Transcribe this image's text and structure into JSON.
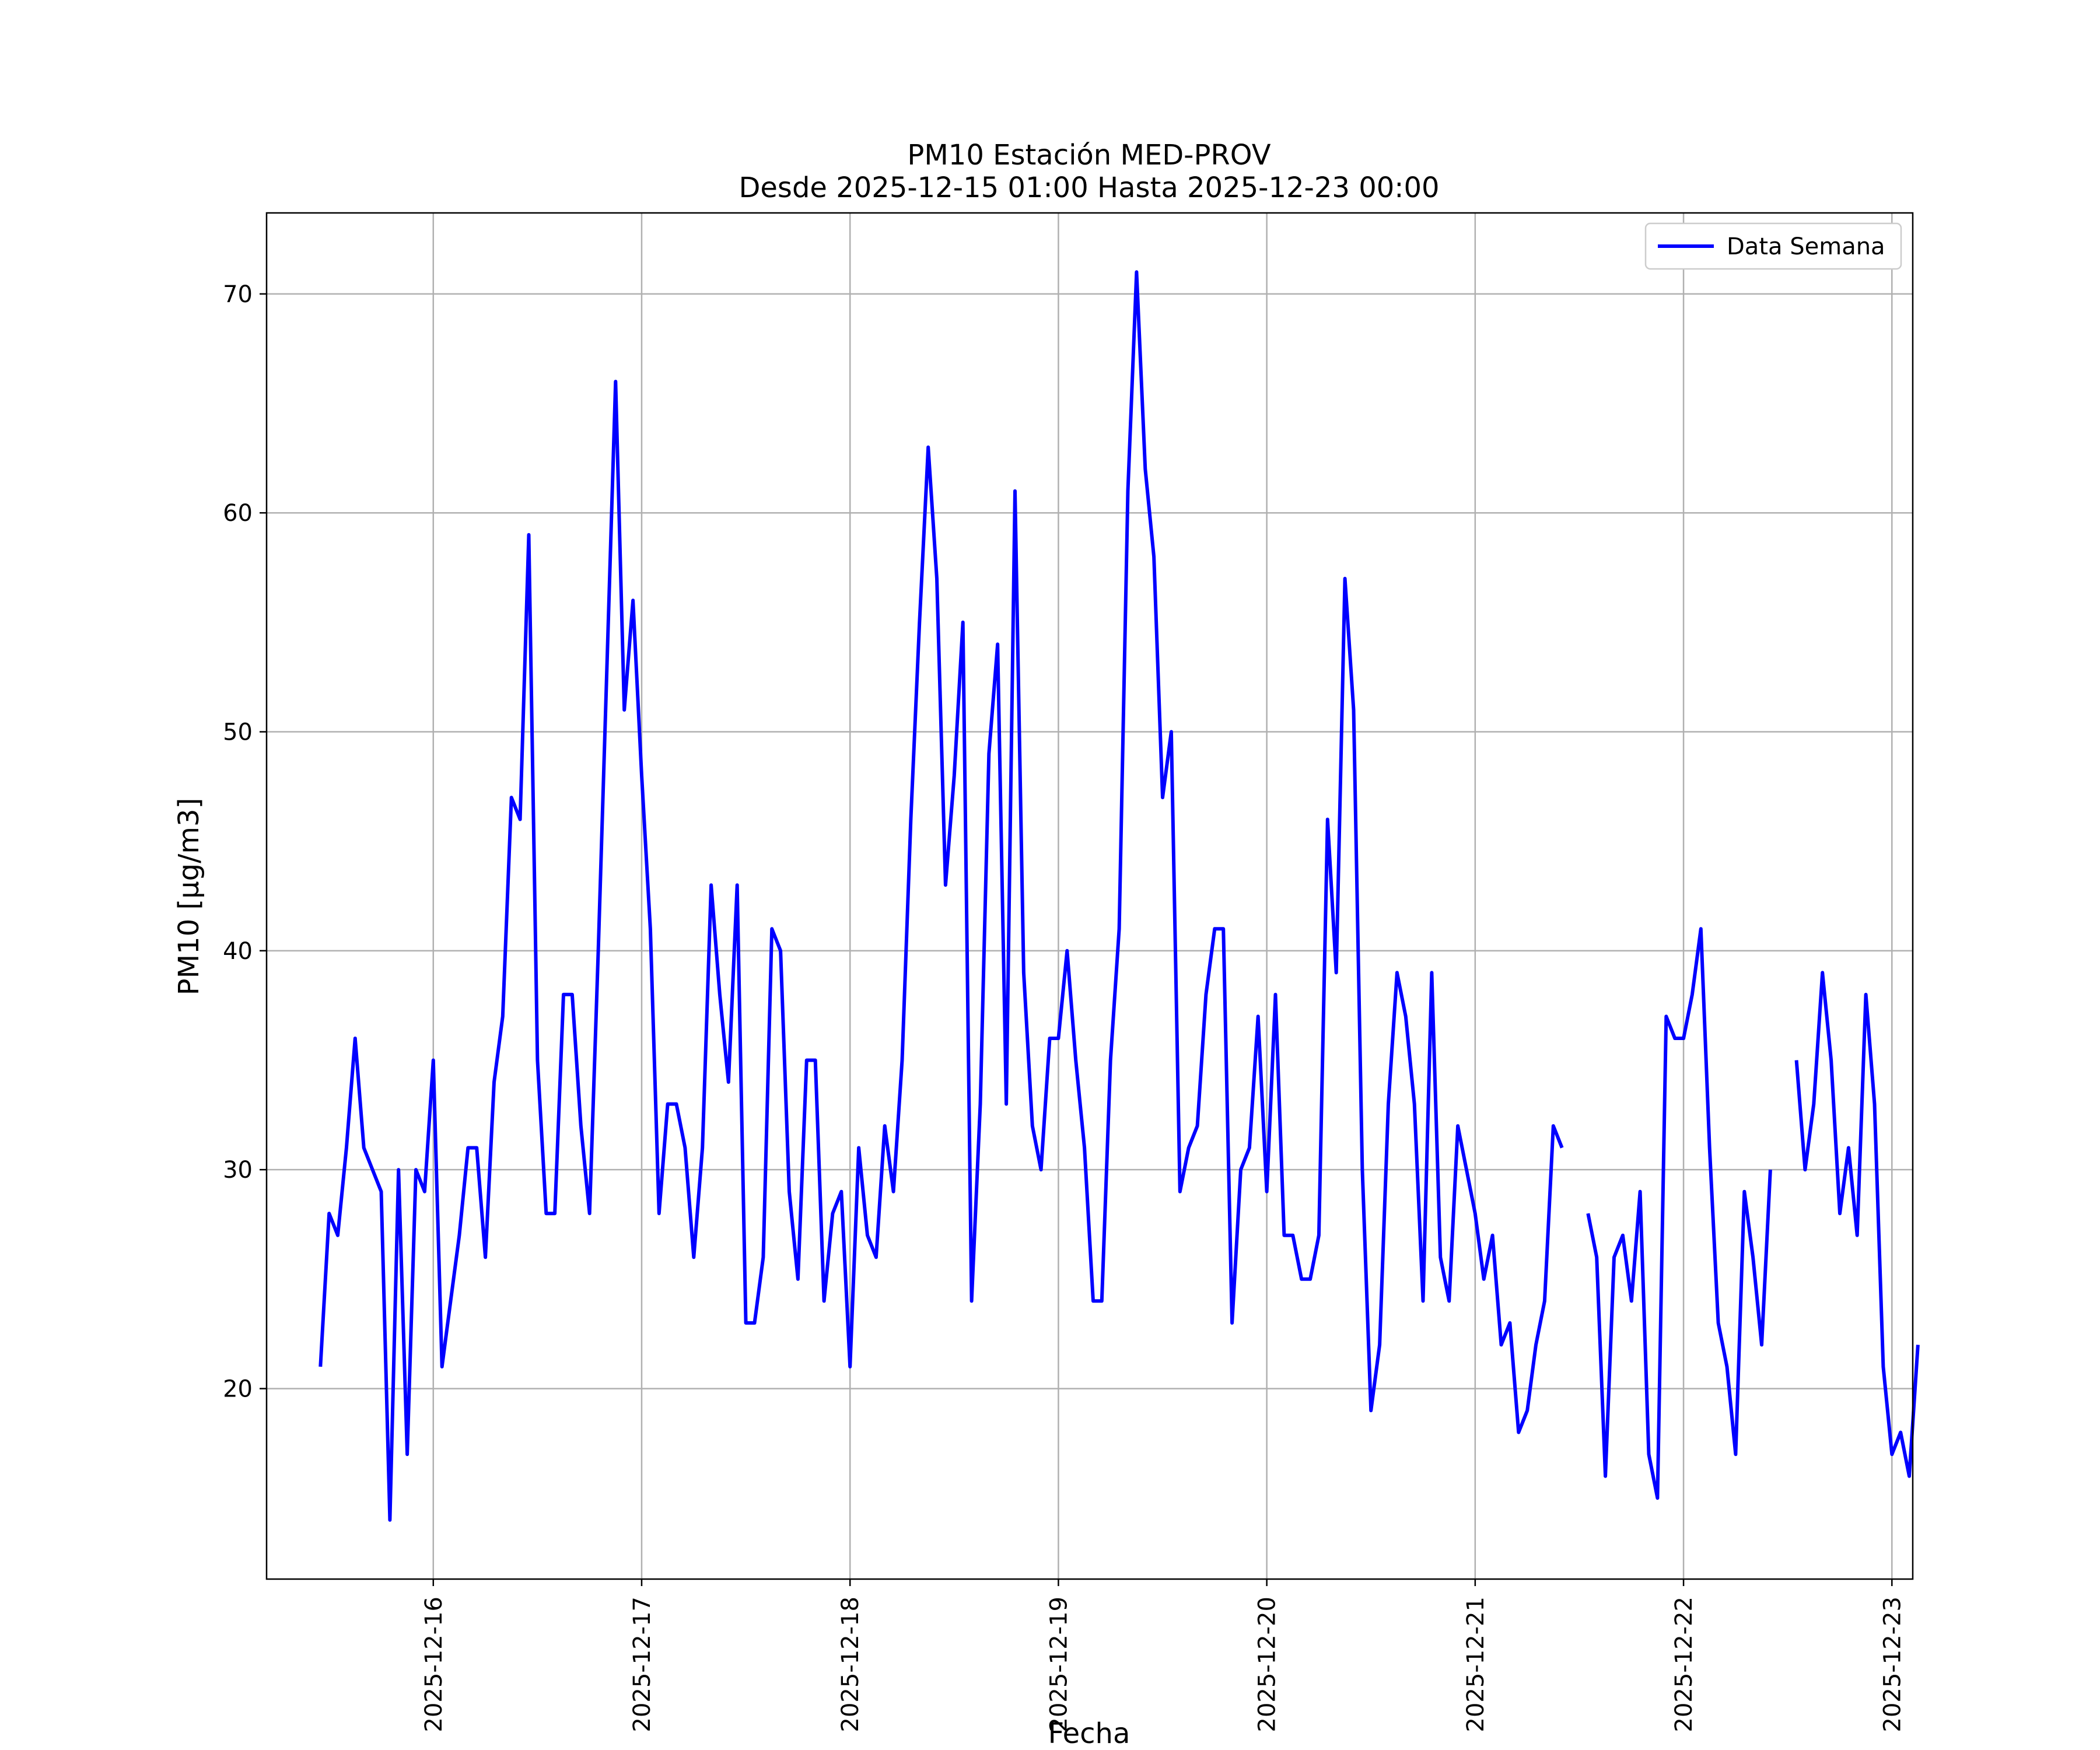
{
  "chart_data": {
    "type": "line",
    "title": "PM10 Estación MED-PROV",
    "subtitle": "Desde 2025-12-15 01:00 Hasta 2025-12-23 00:00",
    "xlabel": "Fecha",
    "ylabel": "PM10 [μg/m3]",
    "xlim": [
      "2025-12-15 04:48",
      "2025-12-23 02:24"
    ],
    "ylim": [
      11.3,
      73.7
    ],
    "grid": true,
    "legend_position": "top-right",
    "x_ticks": [
      "2025-12-16",
      "2025-12-17",
      "2025-12-18",
      "2025-12-19",
      "2025-12-20",
      "2025-12-21",
      "2025-12-22",
      "2025-12-23"
    ],
    "y_ticks": [
      20,
      30,
      40,
      50,
      60,
      70
    ],
    "colors": {
      "series": "#0000ff",
      "grid": "#b0b0b0"
    },
    "series": [
      {
        "name": "Data Semana",
        "start": "2025-12-15 11:00",
        "interval_hours": 1,
        "values": [
          21,
          28,
          27,
          31,
          36,
          31,
          30,
          29,
          14,
          30,
          17,
          30,
          29,
          35,
          21,
          24,
          27,
          31,
          31,
          26,
          34,
          37,
          47,
          46,
          59,
          35,
          28,
          28,
          38,
          38,
          32,
          28,
          40,
          53,
          66,
          51,
          56,
          48,
          41,
          28,
          33,
          33,
          31,
          26,
          31,
          43,
          38,
          34,
          43,
          23,
          23,
          26,
          41,
          40,
          29,
          25,
          35,
          35,
          24,
          28,
          29,
          21,
          31,
          27,
          26,
          32,
          29,
          35,
          46,
          55,
          63,
          57,
          43,
          48,
          55,
          24,
          33,
          49,
          54,
          33,
          61,
          39,
          32,
          30,
          36,
          36,
          40,
          35,
          31,
          24,
          24,
          35,
          41,
          61,
          71,
          62,
          58,
          47,
          50,
          29,
          31,
          32,
          38,
          41,
          41,
          23,
          30,
          31,
          37,
          29,
          38,
          27,
          27,
          25,
          25,
          27,
          46,
          39,
          57,
          51,
          30,
          19,
          22,
          33,
          39,
          37,
          33,
          24,
          39,
          26,
          24,
          32,
          30,
          28,
          25,
          27,
          22,
          23,
          18,
          19,
          22,
          24,
          32,
          31,
          null,
          null,
          28,
          26,
          16,
          26,
          27,
          24,
          29,
          17,
          15,
          37,
          36,
          36,
          38,
          41,
          31,
          23,
          21,
          17,
          29,
          26,
          22,
          30,
          null,
          null,
          35,
          30,
          33,
          39,
          35,
          28,
          31,
          27,
          38,
          33,
          21,
          17,
          18,
          16,
          22
        ]
      }
    ]
  }
}
